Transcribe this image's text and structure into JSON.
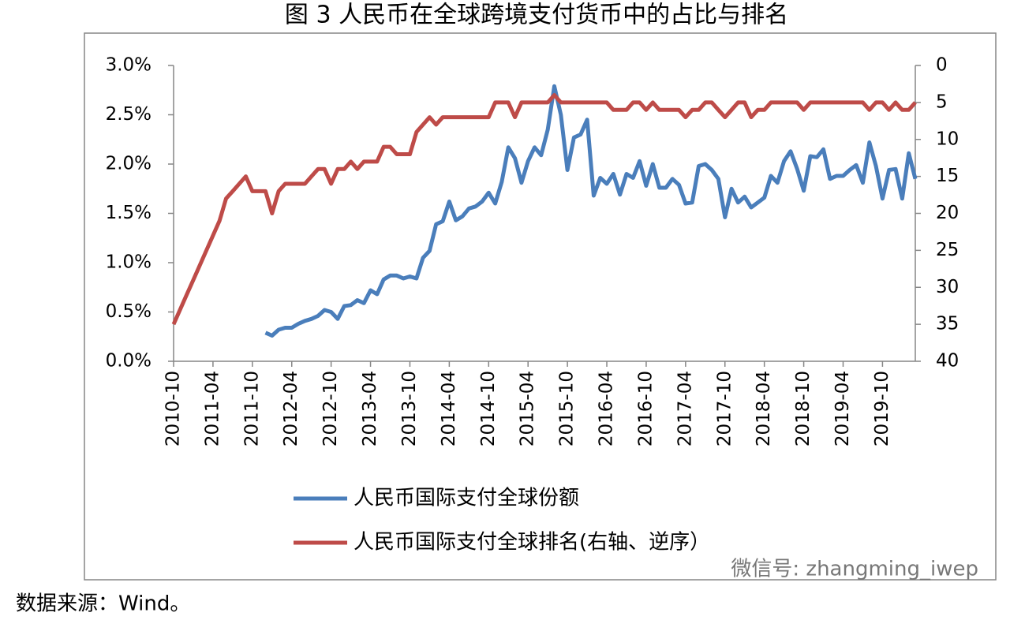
{
  "chart_data": {
    "type": "line",
    "title": "图 3  人民币在全球跨境支付货币中的占比与排名",
    "source": "数据来源：Wind。",
    "watermark": "微信号: zhangming_iwep",
    "categories": [
      "2010-10",
      null,
      null,
      null,
      null,
      null,
      "2011-04",
      null,
      null,
      null,
      null,
      null,
      "2011-10",
      null,
      null,
      null,
      null,
      null,
      "2012-04",
      null,
      null,
      null,
      null,
      null,
      "2012-10",
      null,
      null,
      null,
      null,
      null,
      "2013-04",
      null,
      null,
      null,
      null,
      null,
      "2013-10",
      null,
      null,
      null,
      null,
      null,
      "2014-04",
      null,
      null,
      null,
      null,
      null,
      "2014-10",
      null,
      null,
      null,
      null,
      null,
      "2015-04",
      null,
      null,
      null,
      null,
      null,
      "2015-10",
      null,
      null,
      null,
      null,
      null,
      "2016-04",
      null,
      null,
      null,
      null,
      null,
      "2016-10",
      null,
      null,
      null,
      null,
      null,
      "2017-04",
      null,
      null,
      null,
      null,
      null,
      "2017-10",
      null,
      null,
      null,
      null,
      null,
      "2018-04",
      null,
      null,
      null,
      null,
      null,
      "2018-10",
      null,
      null,
      null,
      null,
      null,
      "2019-04",
      null,
      null,
      null,
      null,
      null,
      "2019-10",
      null,
      null,
      null,
      null,
      null
    ],
    "series": [
      {
        "name": "人民币国际支付全球份额",
        "color": "#4a7ebb",
        "axis": "y",
        "values": [
          null,
          null,
          null,
          null,
          null,
          null,
          null,
          null,
          null,
          null,
          null,
          null,
          null,
          null,
          0.29,
          0.26,
          0.32,
          0.34,
          0.34,
          0.38,
          0.41,
          0.43,
          0.46,
          0.52,
          0.5,
          0.43,
          0.56,
          0.57,
          0.62,
          0.59,
          0.72,
          0.68,
          0.83,
          0.87,
          0.87,
          0.84,
          0.86,
          0.84,
          1.05,
          1.12,
          1.39,
          1.42,
          1.62,
          1.43,
          1.47,
          1.55,
          1.57,
          1.62,
          1.71,
          1.6,
          1.82,
          2.17,
          2.06,
          1.81,
          2.03,
          2.17,
          2.09,
          2.35,
          2.79,
          2.5,
          1.94,
          2.27,
          2.3,
          2.45,
          1.68,
          1.86,
          1.8,
          1.9,
          1.69,
          1.9,
          1.86,
          2.03,
          1.78,
          2.0,
          1.76,
          1.76,
          1.85,
          1.79,
          1.6,
          1.61,
          1.98,
          2.0,
          1.94,
          1.85,
          1.46,
          1.75,
          1.61,
          1.67,
          1.56,
          1.61,
          1.66,
          1.88,
          1.81,
          2.03,
          2.13,
          1.95,
          1.73,
          2.08,
          2.07,
          2.15,
          1.85,
          1.88,
          1.88,
          1.94,
          1.99,
          1.81,
          2.22,
          1.98,
          1.65,
          1.94,
          1.95,
          1.65,
          2.11,
          1.85
        ]
      },
      {
        "name": "人民币国际支付全球排名(右轴、逆序）",
        "color": "#be4b48",
        "axis": "y2",
        "values": [
          35,
          33,
          31,
          29,
          27,
          25,
          23,
          21,
          18,
          17,
          16,
          15,
          17,
          17,
          17,
          20,
          17,
          16,
          16,
          16,
          16,
          15,
          14,
          14,
          16,
          14,
          14,
          13,
          14,
          13,
          13,
          13,
          11,
          11,
          12,
          12,
          12,
          9,
          8,
          7,
          8,
          7,
          7,
          7,
          7,
          7,
          7,
          7,
          7,
          5,
          5,
          5,
          7,
          5,
          5,
          5,
          5,
          5,
          4,
          5,
          5,
          5,
          5,
          5,
          5,
          5,
          5,
          6,
          6,
          6,
          5,
          5,
          6,
          5,
          6,
          6,
          6,
          6,
          7,
          6,
          6,
          5,
          5,
          6,
          7,
          6,
          5,
          5,
          7,
          6,
          6,
          5,
          5,
          5,
          5,
          5,
          6,
          5,
          5,
          5,
          5,
          5,
          5,
          5,
          5,
          5,
          6,
          5,
          5,
          6,
          5,
          6,
          6,
          5
        ]
      }
    ],
    "ylim": [
      0,
      3
    ],
    "yticks": [
      {
        "value": 0,
        "label": "0.0%"
      },
      {
        "value": 0.5,
        "label": "0.5%"
      },
      {
        "value": 1,
        "label": "1.0%"
      },
      {
        "value": 1.5,
        "label": "1.5%"
      },
      {
        "value": 2,
        "label": "2.0%"
      },
      {
        "value": 2.5,
        "label": "2.5%"
      },
      {
        "value": 3,
        "label": "3.0%"
      }
    ],
    "y2lim": [
      40,
      0
    ],
    "y2ticks": [
      0,
      5,
      10,
      15,
      20,
      25,
      30,
      35,
      40
    ],
    "grid": false
  }
}
